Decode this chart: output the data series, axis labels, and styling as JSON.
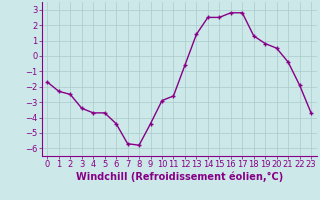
{
  "x": [
    0,
    1,
    2,
    3,
    4,
    5,
    6,
    7,
    8,
    9,
    10,
    11,
    12,
    13,
    14,
    15,
    16,
    17,
    18,
    19,
    20,
    21,
    22,
    23
  ],
  "y": [
    -1.7,
    -2.3,
    -2.5,
    -3.4,
    -3.7,
    -3.7,
    -4.4,
    -5.7,
    -5.8,
    -4.4,
    -2.9,
    -2.6,
    -0.6,
    1.4,
    2.5,
    2.5,
    2.8,
    2.8,
    1.3,
    0.8,
    0.5,
    -0.4,
    -1.9,
    -3.7
  ],
  "line_color": "#880088",
  "marker": "+",
  "marker_size": 3.5,
  "linewidth": 1.0,
  "background_color": "#cce8e8",
  "grid_color": "#aacccc",
  "xlabel": "Windchill (Refroidissement éolien,°C)",
  "xlabel_fontsize": 7,
  "xlabel_color": "#880088",
  "tick_color": "#880088",
  "tick_fontsize": 6,
  "ylim": [
    -6.5,
    3.5
  ],
  "yticks": [
    -6,
    -5,
    -4,
    -3,
    -2,
    -1,
    0,
    1,
    2,
    3
  ],
  "xlim": [
    -0.5,
    23.5
  ],
  "xticks": [
    0,
    1,
    2,
    3,
    4,
    5,
    6,
    7,
    8,
    9,
    10,
    11,
    12,
    13,
    14,
    15,
    16,
    17,
    18,
    19,
    20,
    21,
    22,
    23
  ]
}
